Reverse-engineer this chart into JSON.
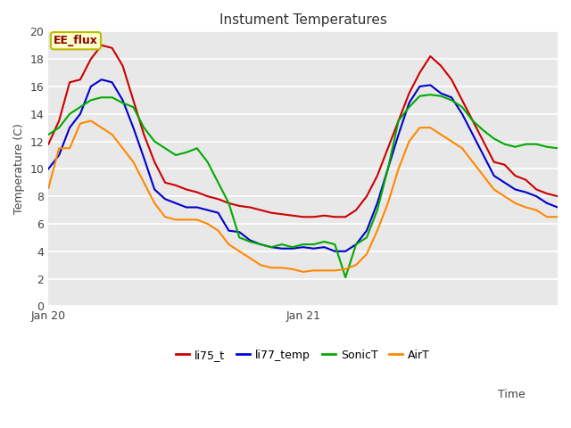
{
  "title": "Instument Temperatures",
  "xlabel": "Time",
  "ylabel": "Temperature (C)",
  "ylim": [
    0,
    20
  ],
  "annotation": "EE_flux",
  "plot_bg_color": "#e8e8e8",
  "fig_bg_color": "#ffffff",
  "series": {
    "li75_t": {
      "color": "#cc0000",
      "y": [
        11.8,
        13.5,
        16.3,
        16.5,
        18.0,
        19.0,
        18.8,
        17.5,
        15.0,
        12.5,
        10.5,
        9.0,
        8.8,
        8.5,
        8.3,
        8.0,
        7.8,
        7.5,
        7.3,
        7.2,
        7.0,
        6.8,
        6.7,
        6.6,
        6.5,
        6.5,
        6.6,
        6.5,
        6.5,
        7.0,
        8.0,
        9.5,
        11.5,
        13.5,
        15.5,
        17.0,
        18.2,
        17.5,
        16.5,
        15.0,
        13.5,
        12.0,
        10.5,
        10.3,
        9.5,
        9.2,
        8.5,
        8.2,
        8.0
      ]
    },
    "li77_temp": {
      "color": "#0000cc",
      "y": [
        10.0,
        11.0,
        13.0,
        14.0,
        16.0,
        16.5,
        16.3,
        15.0,
        13.0,
        10.8,
        8.5,
        7.8,
        7.5,
        7.2,
        7.2,
        7.0,
        6.8,
        5.5,
        5.4,
        4.8,
        4.5,
        4.3,
        4.2,
        4.2,
        4.3,
        4.2,
        4.3,
        4.0,
        4.0,
        4.5,
        5.5,
        7.5,
        10.0,
        12.5,
        14.8,
        16.0,
        16.1,
        15.5,
        15.2,
        14.0,
        12.5,
        11.0,
        9.5,
        9.0,
        8.5,
        8.3,
        8.0,
        7.5,
        7.2
      ]
    },
    "SonicT": {
      "color": "#00aa00",
      "y": [
        12.5,
        13.0,
        14.0,
        14.5,
        15.0,
        15.2,
        15.2,
        14.8,
        14.5,
        13.0,
        12.0,
        11.5,
        11.0,
        11.2,
        11.5,
        10.5,
        9.0,
        7.5,
        5.0,
        4.7,
        4.5,
        4.3,
        4.5,
        4.3,
        4.5,
        4.5,
        4.7,
        4.5,
        2.1,
        4.5,
        5.0,
        7.0,
        10.0,
        13.5,
        14.5,
        15.3,
        15.4,
        15.3,
        15.0,
        14.5,
        13.5,
        12.8,
        12.2,
        11.8,
        11.6,
        11.8,
        11.8,
        11.6,
        11.5
      ]
    },
    "AirT": {
      "color": "#ff8800",
      "y": [
        8.6,
        11.5,
        11.5,
        13.3,
        13.5,
        13.0,
        12.5,
        11.5,
        10.5,
        9.0,
        7.5,
        6.5,
        6.3,
        6.3,
        6.3,
        6.0,
        5.5,
        4.5,
        4.0,
        3.5,
        3.0,
        2.8,
        2.8,
        2.7,
        2.5,
        2.6,
        2.6,
        2.6,
        2.7,
        3.0,
        3.8,
        5.5,
        7.5,
        10.0,
        12.0,
        13.0,
        13.0,
        12.5,
        12.0,
        11.5,
        10.5,
        9.5,
        8.5,
        8.0,
        7.5,
        7.2,
        7.0,
        6.5,
        6.5
      ]
    }
  },
  "xtick_positions": [
    0,
    24
  ],
  "xtick_labels": [
    "Jan 20",
    "Jan 21"
  ],
  "legend_order": [
    "li75_t",
    "li77_temp",
    "SonicT",
    "AirT"
  ]
}
